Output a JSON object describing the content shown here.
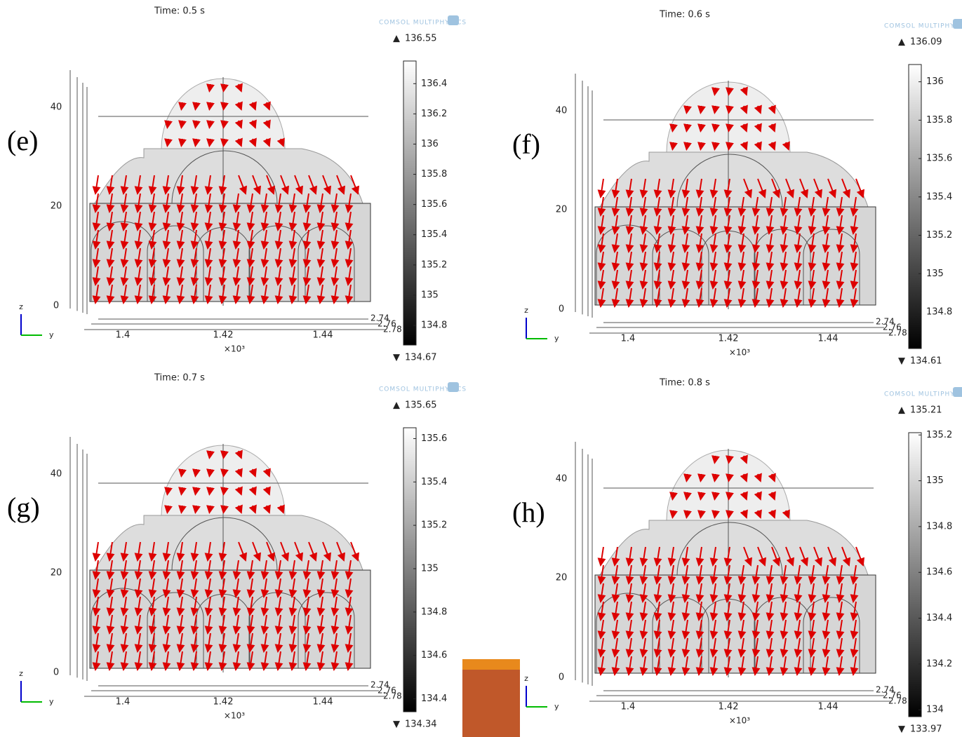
{
  "watermark": "COMSOL MULTIPHYSICS",
  "axis_names": {
    "z": "z",
    "y": "y"
  },
  "scale_label": "×10³",
  "max_marker": "▲",
  "min_marker": "▼",
  "panels": [
    {
      "label": "(e)",
      "time": "Time: 0.5 s",
      "max": 136.55,
      "min": 134.67,
      "colorbar_ticks": [
        136.4,
        136.2,
        136,
        135.8,
        135.6,
        135.4,
        135.2,
        135,
        134.8
      ],
      "z_ticks": [
        "0",
        "20",
        "40"
      ],
      "y_ticks": [
        "1.4",
        "1.42",
        "1.44"
      ],
      "x_ticks": [
        "2.74",
        "2.76",
        "2.78"
      ]
    },
    {
      "label": "(f)",
      "time": "Time: 0.6 s",
      "max": 136.09,
      "min": 134.61,
      "colorbar_ticks": [
        136,
        135.8,
        135.6,
        135.4,
        135.2,
        135,
        134.8
      ],
      "z_ticks": [
        "0",
        "20",
        "40"
      ],
      "y_ticks": [
        "1.4",
        "1.42",
        "1.44"
      ],
      "x_ticks": [
        "2.74",
        "2.76",
        "2.78"
      ]
    },
    {
      "label": "(g)",
      "time": "Time: 0.7 s",
      "max": 135.65,
      "min": 134.34,
      "colorbar_ticks": [
        135.6,
        135.4,
        135.2,
        135,
        134.8,
        134.6,
        134.4
      ],
      "z_ticks": [
        "0",
        "20",
        "40"
      ],
      "y_ticks": [
        "1.4",
        "1.42",
        "1.44"
      ],
      "x_ticks": [
        "2.74",
        "2.76",
        "2.78"
      ]
    },
    {
      "label": "(h)",
      "time": "Time: 0.8 s",
      "max": 135.21,
      "min": 133.97,
      "colorbar_ticks": [
        135.2,
        135,
        134.8,
        134.6,
        134.4,
        134.2,
        134
      ],
      "z_ticks": [
        "0",
        "20",
        "40"
      ],
      "y_ticks": [
        "1.4",
        "1.42",
        "1.44"
      ],
      "x_ticks": [
        "2.74",
        "2.76",
        "2.78"
      ]
    }
  ]
}
